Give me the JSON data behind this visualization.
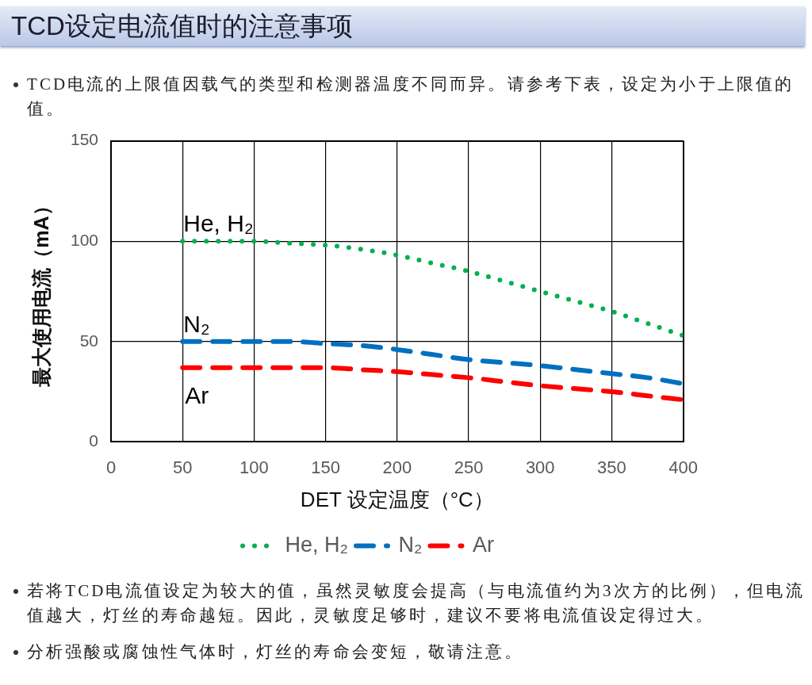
{
  "chart_data": {
    "type": "line",
    "title": "TCD设定电流值时的注意事项",
    "subtitle": "TCD电流的上限值因载气的类型和检测器温度不同而异。请参考下表，设定为小于上限值的值。",
    "xlabel": "DET 设定温度（°C）",
    "ylabel": "最大使用电流（mA）",
    "annotations": [
      "若将TCD电流值设定为较大的值，虽然灵敏度会提高（与电流值约为3次方的比例），但电流值越大，灯丝的寿命越短。因此，灵敏度足够时，建议不要将电流值设定得过大。",
      "分析强酸或腐蚀性气体时，灯丝的寿命会变短，敬请注意。"
    ],
    "x": [
      50,
      75,
      100,
      125,
      150,
      175,
      200,
      225,
      250,
      275,
      300,
      325,
      350,
      375,
      400
    ],
    "series": [
      {
        "name": "He, H₂",
        "color": "#00b050",
        "line_style": "dotted",
        "values": [
          100,
          100,
          100,
          99,
          98,
          96,
          93,
          89,
          85,
          80,
          75,
          70,
          65,
          59,
          53
        ]
      },
      {
        "name": "N₂",
        "color": "#0070c0",
        "line_style": "dashed",
        "values": [
          50,
          50,
          50,
          50,
          49,
          48,
          46,
          43.5,
          41,
          39.5,
          38,
          36,
          34,
          32,
          29
        ]
      },
      {
        "name": "Ar",
        "color": "#ff0000",
        "line_style": "dashed",
        "values": [
          37,
          37,
          37,
          37,
          37,
          36,
          35,
          33.5,
          32,
          30,
          28,
          26.5,
          25,
          23,
          21
        ]
      }
    ],
    "xlim": [
      0,
      400
    ],
    "ylim": [
      0,
      150
    ],
    "xticks": [
      0,
      50,
      100,
      150,
      200,
      250,
      300,
      350,
      400
    ],
    "yticks": [
      0,
      50,
      100,
      150
    ],
    "grid": true,
    "legend": "bottom",
    "marker": "none"
  }
}
